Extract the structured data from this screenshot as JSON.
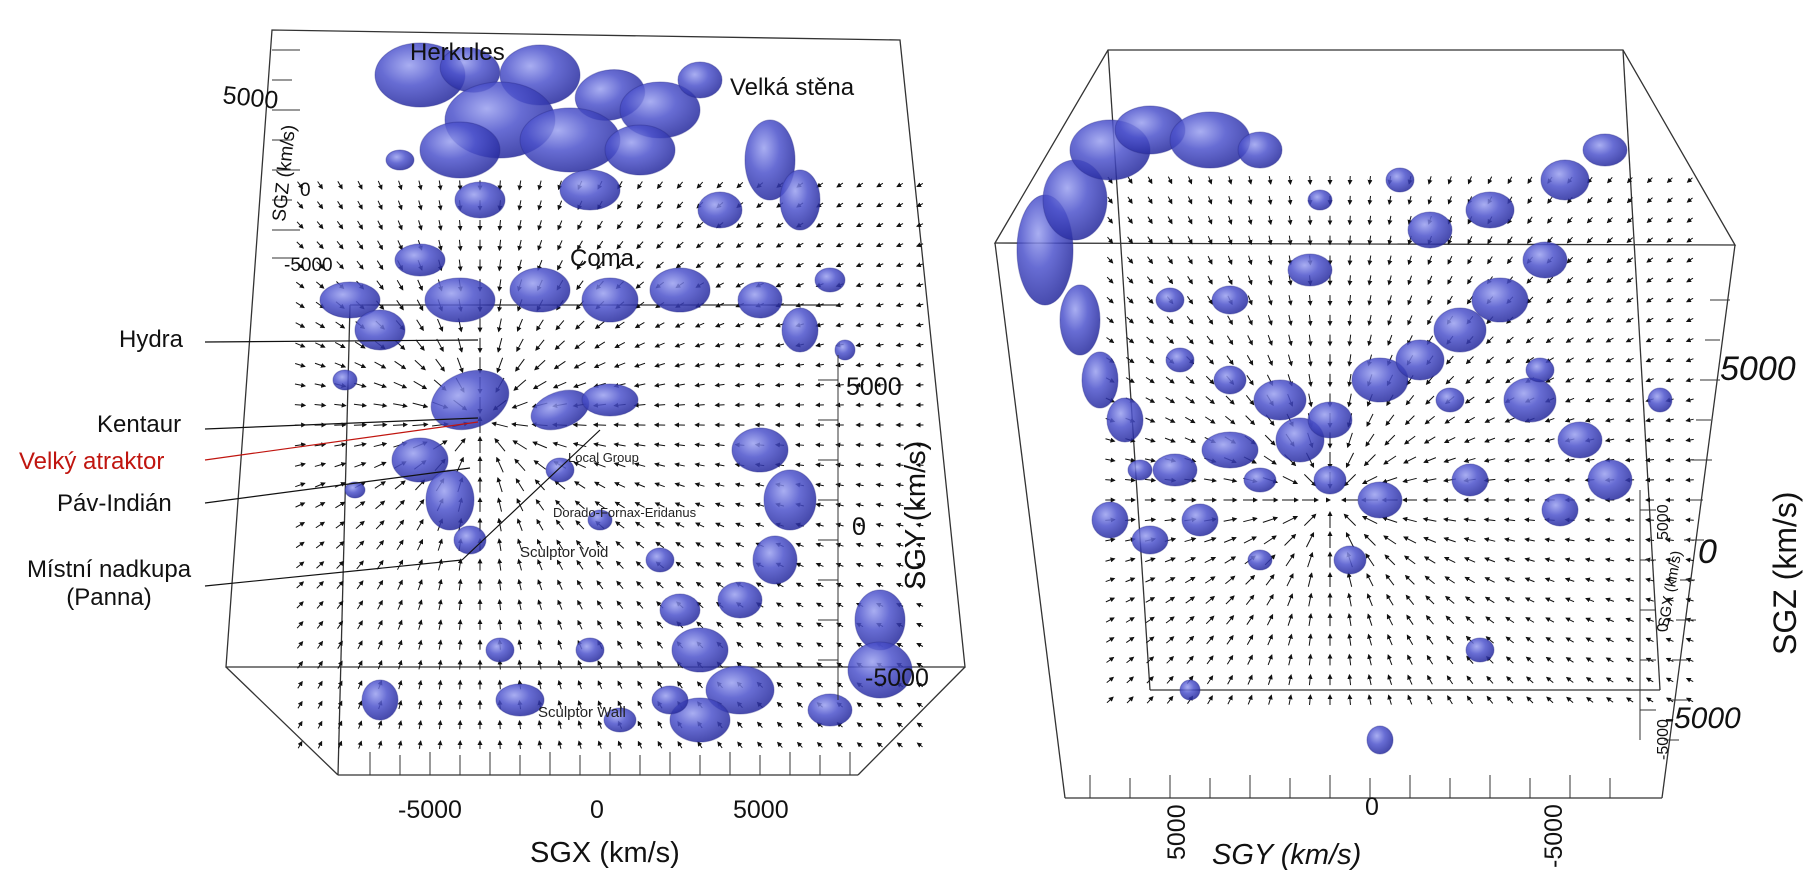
{
  "left_cube": {
    "callouts": {
      "hydra": "Hydra",
      "kentaur": "Kentaur",
      "velky_atraktor": "Velký atraktor",
      "pav_indian": "Páv-Indián",
      "mistni_nadkupa_line1": "Místní nadkupa",
      "mistni_nadkupa_line2": "(Panna)"
    },
    "structures": {
      "herkules": "Herkules",
      "velka_stena": "Velká stěna",
      "coma": "Coma",
      "local_group": "Local Group",
      "dorado_fornax": "Dorado-Fornax-Eridanus",
      "sculptor_void": "Sculptor Void",
      "sculptor_wall": "Sculptor Wall"
    },
    "axes": {
      "sgx_title": "SGX (km/s)",
      "sgx_ticks": [
        "-5000",
        "0",
        "5000"
      ],
      "sgz_title": "SGZ (km/s)",
      "sgz_ticks": [
        "5000",
        "0",
        "-5000"
      ],
      "sgy_title": "SGY (km/s)",
      "sgy_ticks": [
        "5000",
        "0",
        "-5000"
      ]
    }
  },
  "right_cube": {
    "axes": {
      "sgy_title": "SGY (km/s)",
      "sgy_ticks": [
        "5000",
        "0",
        "-5000"
      ],
      "sgz_title": "SGZ (km/s)",
      "sgz_ticks": [
        "5000",
        "0",
        "-5000"
      ],
      "sgx_title": "SGX (km/s)",
      "sgx_ticks": [
        "5000",
        "0",
        "-5000"
      ]
    }
  },
  "colors": {
    "structure_fill": "#3a3fb8",
    "structure_highlight": "#8f96e8",
    "arrow": "#111111",
    "attractor_callout": "#c0150f"
  }
}
